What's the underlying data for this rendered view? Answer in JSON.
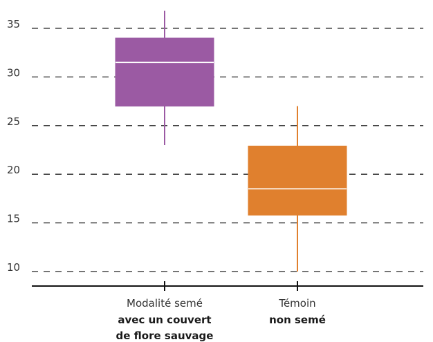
{
  "chart_data": {
    "type": "boxplot",
    "title": "",
    "xlabel": "",
    "ylabel": "",
    "ylim": [
      9,
      37
    ],
    "yticks": [
      10,
      15,
      20,
      25,
      30,
      35
    ],
    "grid": true,
    "categories": [
      {
        "line1": "Modalité semé",
        "line2": "avec un couvert",
        "line3": "de flore sauvage"
      },
      {
        "line1": "Témoin",
        "line2": "non semé",
        "line3": ""
      }
    ],
    "series": [
      {
        "whisker_min": 23,
        "q1": 27,
        "median": 31.5,
        "q3": 34,
        "whisker_max": 36.8,
        "color": "#9b5aa3"
      },
      {
        "whisker_min": 10,
        "q1": 15.8,
        "median": 18.5,
        "q3": 22.9,
        "whisker_max": 27,
        "color": "#e0802e"
      }
    ]
  }
}
